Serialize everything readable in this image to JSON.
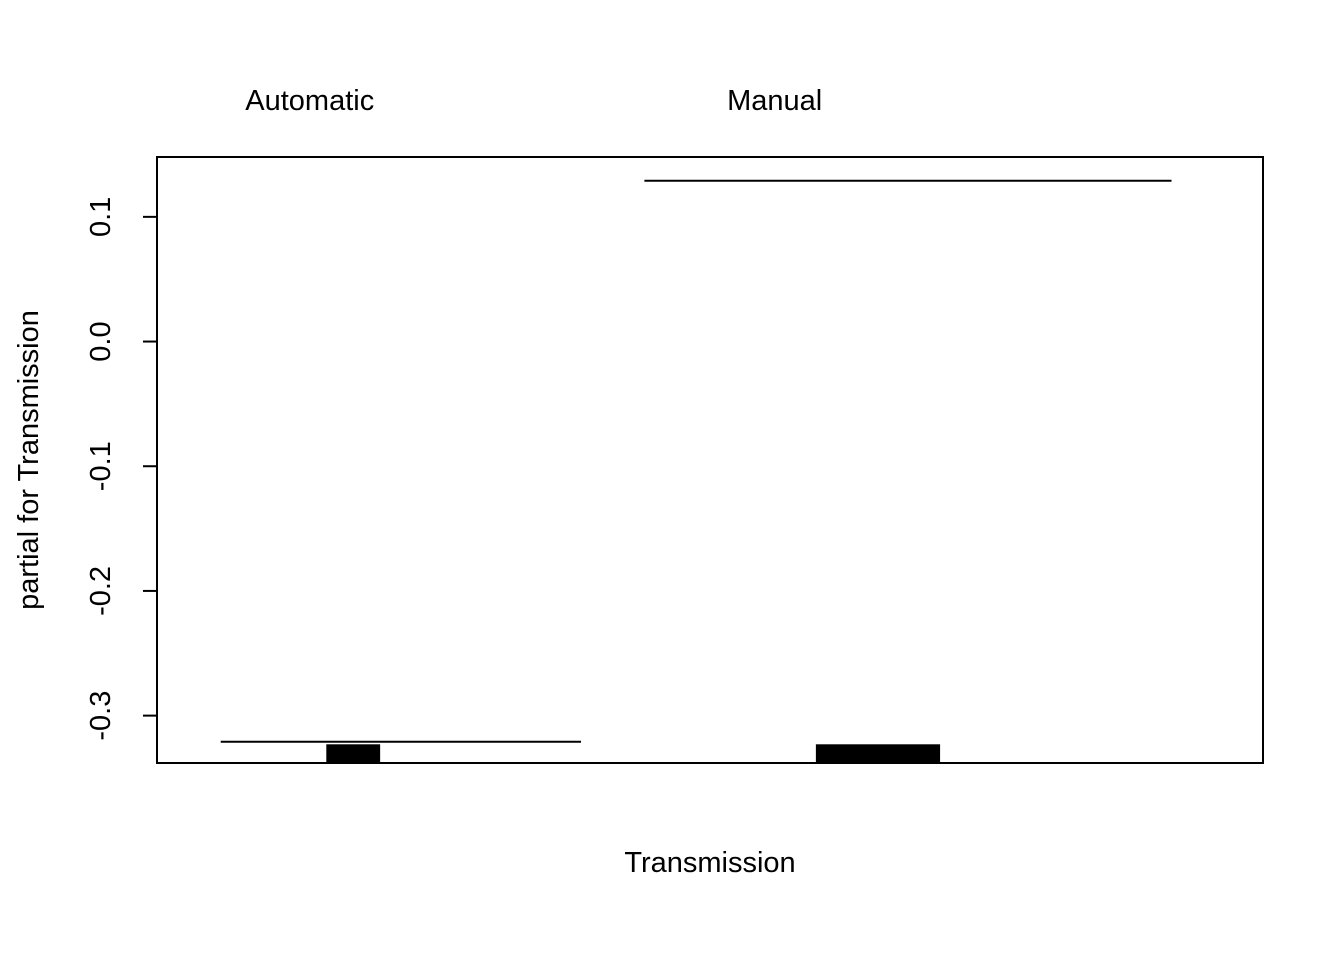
{
  "chart_data": {
    "type": "bar",
    "categories": [
      "Automatic",
      "Manual"
    ],
    "category_weights": [
      0.406,
      0.594
    ],
    "xlabel": "Transmission",
    "ylabel": "partial for Transmission",
    "ylim": [
      -0.338,
      0.148
    ],
    "yticks": [
      {
        "value": -0.3,
        "label": "-0.3"
      },
      {
        "value": -0.2,
        "label": "-0.2"
      },
      {
        "value": -0.1,
        "label": "-0.1"
      },
      {
        "value": 0.0,
        "label": "0.0"
      },
      {
        "value": 0.1,
        "label": "0.1"
      }
    ],
    "fitted_effects": [
      {
        "category": "Automatic",
        "value": -0.321
      },
      {
        "category": "Manual",
        "value": 0.129
      }
    ],
    "rug_bars": [
      {
        "category": "Automatic",
        "value_from": -0.338,
        "value_to": -0.323
      },
      {
        "category": "Manual",
        "value_from": -0.338,
        "value_to": -0.323
      }
    ],
    "colors": {
      "ink": "#000000",
      "background": "#ffffff"
    }
  }
}
